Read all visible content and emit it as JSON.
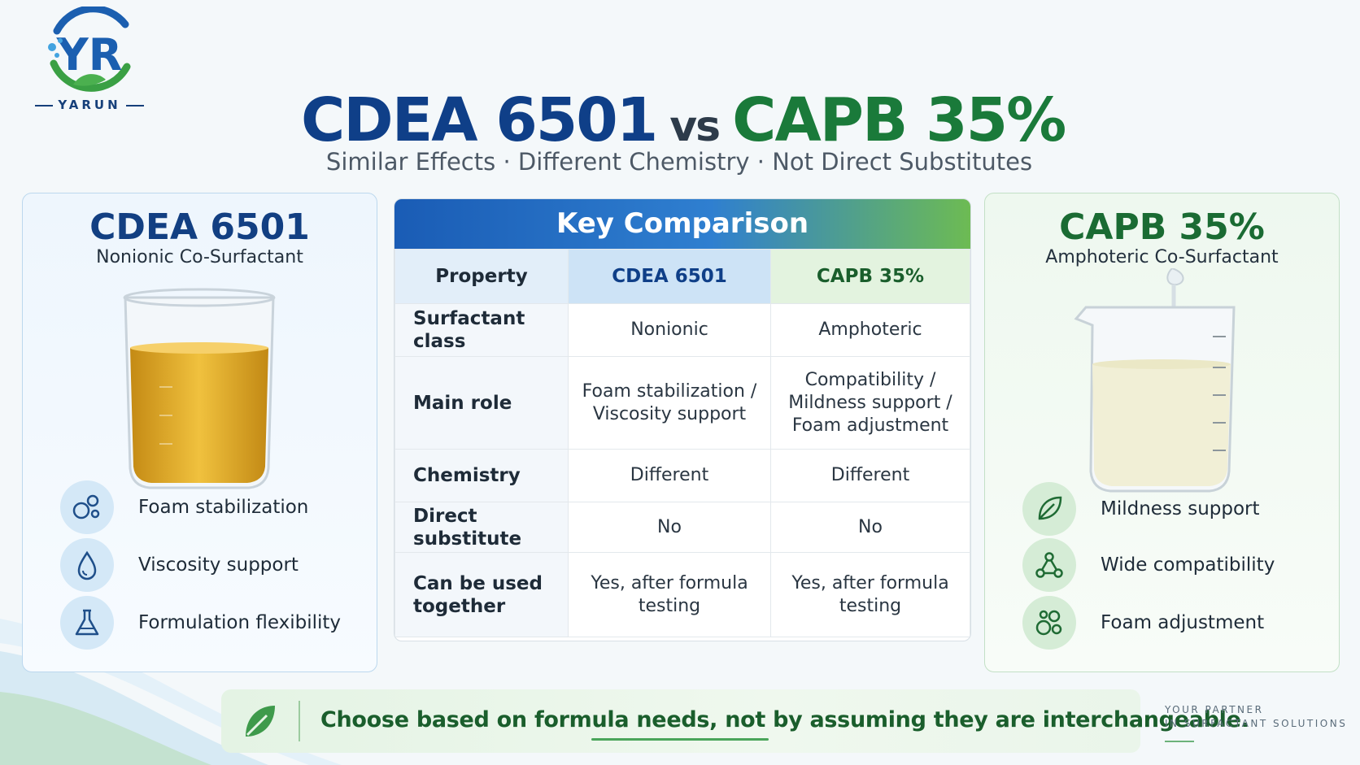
{
  "brand": {
    "logo_text": "YARUN",
    "tagline_line1": "YOUR PARTNER",
    "tagline_line2": "IN SURFACTANT SOLUTIONS"
  },
  "headline": {
    "left": "CDEA 6501",
    "vs": "vs",
    "right": "CAPB 35%"
  },
  "subtitle": "Similar Effects · Different Chemistry · Not Direct Substitutes",
  "left_panel": {
    "title": "CDEA 6501",
    "subtitle": "Nonionic Co-Surfactant",
    "features": [
      {
        "label": "Foam stabilization",
        "icon": "bubbles-icon"
      },
      {
        "label": "Viscosity support",
        "icon": "droplet-icon"
      },
      {
        "label": "Formulation flexibility",
        "icon": "flask-icon"
      }
    ]
  },
  "right_panel": {
    "title": "CAPB 35%",
    "subtitle": "Amphoteric Co-Surfactant",
    "features": [
      {
        "label": "Mildness support",
        "icon": "leaf-icon"
      },
      {
        "label": "Wide compatibility",
        "icon": "molecule-icon"
      },
      {
        "label": "Foam adjustment",
        "icon": "bubbles-icon"
      }
    ]
  },
  "comparison": {
    "title": "Key Comparison",
    "headers": [
      "Property",
      "CDEA 6501",
      "CAPB 35%"
    ],
    "rows": [
      [
        "Surfactant class",
        "Nonionic",
        "Amphoteric"
      ],
      [
        "Main role",
        "Foam stabilization / Viscosity support",
        "Compatibility / Mildness support / Foam adjustment"
      ],
      [
        "Chemistry",
        "Different",
        "Different"
      ],
      [
        "Direct substitute",
        "No",
        "No"
      ],
      [
        "Can be used together",
        "Yes, after formula testing",
        "Yes, after formula testing"
      ]
    ]
  },
  "banner": {
    "text": "Choose based on formula needs, not by assuming they are interchangeable."
  },
  "colors": {
    "blue": "#0f3f88",
    "green": "#1a7a3a",
    "accent_green": "#4aa55a"
  }
}
